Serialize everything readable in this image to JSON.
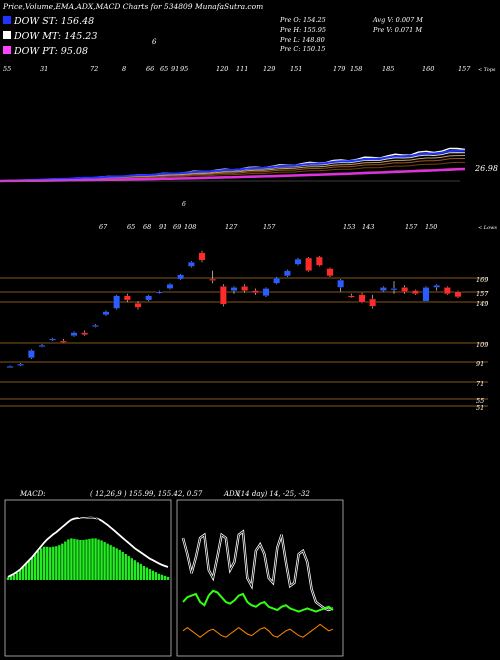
{
  "header": {
    "title": "Price,Volume,EMA,ADX,MACD Charts for 534809 MunafaSutra.com",
    "legend": [
      {
        "label": "DOW ST: 156.48",
        "color": "#2233ff"
      },
      {
        "label": "DOW MT: 145.23",
        "color": "#ffffff"
      },
      {
        "label": "DOW PT: 95.08",
        "color": "#ff44ff"
      }
    ],
    "ohlc": {
      "open": "Pre   O: 154.25",
      "high": "Pre   H: 155.95",
      "low": "Pre   L: 148.80",
      "close": "Pre   C: 150.15"
    },
    "volume": {
      "avg": "Avg V: 0.007 M",
      "prev": "Pre   V: 0.071 M"
    },
    "stray_top": "6"
  },
  "colors": {
    "up": "#2b5cff",
    "down": "#ff2b2b",
    "grid": "#b07020",
    "macd_fill": "#22ee22",
    "adx_pos": "#33ff11",
    "adx_neg": "#ff8800",
    "dow_pt": "#dd33dd"
  },
  "top_labels": [
    "55",
    "31",
    "72",
    "8",
    "66",
    "65",
    "91",
    "95",
    "120",
    "111",
    "129",
    "151",
    "179",
    "158",
    "185",
    "160",
    "157"
  ],
  "top_axis_note": "< Tops",
  "mid_labels": [
    "67",
    "65",
    "68",
    "91",
    "69",
    "108",
    "127",
    "157",
    "153",
    "143",
    "157",
    "150"
  ],
  "mid_axis_note": "< Lows",
  "mid_stray": "6",
  "dow_pt_value": "26.98",
  "chart_data": [
    {
      "type": "candlestick",
      "title": "",
      "levels": [
        169,
        157,
        149,
        109,
        91,
        71,
        55,
        51
      ],
      "candles": [
        {
          "o": 84.5,
          "h": 85.5,
          "l": 84,
          "c": 85
        },
        {
          "o": 86,
          "h": 88,
          "l": 85,
          "c": 87
        },
        {
          "o": 93,
          "h": 101,
          "l": 92,
          "c": 100
        },
        {
          "o": 104,
          "h": 106,
          "l": 103,
          "c": 105
        },
        {
          "o": 110,
          "h": 112,
          "l": 109,
          "c": 111
        },
        {
          "o": 109,
          "h": 111,
          "l": 107,
          "c": 108
        },
        {
          "o": 114,
          "h": 118,
          "l": 113,
          "c": 117
        },
        {
          "o": 117,
          "h": 119,
          "l": 114,
          "c": 115
        },
        {
          "o": 123,
          "h": 125,
          "l": 122,
          "c": 124
        },
        {
          "o": 134,
          "h": 138,
          "l": 133,
          "c": 137
        },
        {
          "o": 140,
          "h": 153,
          "l": 139,
          "c": 152
        },
        {
          "o": 152,
          "h": 154,
          "l": 146,
          "c": 148
        },
        {
          "o": 145,
          "h": 147,
          "l": 139,
          "c": 141
        },
        {
          "o": 148,
          "h": 153,
          "l": 147,
          "c": 152
        },
        {
          "o": 155,
          "h": 157,
          "l": 154,
          "c": 156
        },
        {
          "o": 159,
          "h": 164,
          "l": 158,
          "c": 163
        },
        {
          "o": 168,
          "h": 173,
          "l": 167,
          "c": 172
        },
        {
          "o": 180,
          "h": 185,
          "l": 179,
          "c": 184
        },
        {
          "o": 193,
          "h": 195,
          "l": 184,
          "c": 186
        },
        {
          "o": 168,
          "h": 176,
          "l": 164,
          "c": 167
        },
        {
          "o": 161,
          "h": 163,
          "l": 142,
          "c": 144
        },
        {
          "o": 157,
          "h": 161,
          "l": 154,
          "c": 160
        },
        {
          "o": 161,
          "h": 163,
          "l": 155,
          "c": 157
        },
        {
          "o": 157,
          "h": 159,
          "l": 153,
          "c": 155
        },
        {
          "o": 152,
          "h": 160,
          "l": 151,
          "c": 159
        },
        {
          "o": 164,
          "h": 170,
          "l": 163,
          "c": 169
        },
        {
          "o": 171,
          "h": 177,
          "l": 170,
          "c": 176
        },
        {
          "o": 182,
          "h": 188,
          "l": 181,
          "c": 187
        },
        {
          "o": 188,
          "h": 189,
          "l": 175,
          "c": 176
        },
        {
          "o": 189,
          "h": 190,
          "l": 180,
          "c": 181
        },
        {
          "o": 178,
          "h": 179,
          "l": 170,
          "c": 171
        },
        {
          "o": 160,
          "h": 168,
          "l": 156,
          "c": 167
        },
        {
          "o": 152,
          "h": 154,
          "l": 150,
          "c": 151
        },
        {
          "o": 153,
          "h": 155,
          "l": 145,
          "c": 146
        },
        {
          "o": 149,
          "h": 153,
          "l": 140,
          "c": 142
        },
        {
          "o": 157,
          "h": 161,
          "l": 156,
          "c": 160
        },
        {
          "o": 159,
          "h": 166,
          "l": 154,
          "c": 159
        },
        {
          "o": 160,
          "h": 162,
          "l": 154,
          "c": 156
        },
        {
          "o": 157,
          "h": 158,
          "l": 153,
          "c": 154
        },
        {
          "o": 147,
          "h": 161,
          "l": 147,
          "c": 160
        },
        {
          "o": 160,
          "h": 163,
          "l": 157,
          "c": 162
        },
        {
          "o": 160,
          "h": 161,
          "l": 153,
          "c": 154
        },
        {
          "o": 156,
          "h": 157,
          "l": 150,
          "c": 151
        }
      ]
    },
    {
      "type": "line",
      "title": "MACD:",
      "params": "( 12,26,9 ) 155.99, 155.42, 0.57",
      "hist": [
        0.5,
        0.8,
        1.0,
        1.4,
        1.9,
        2.6,
        3.2,
        3.8,
        4.3,
        4.9,
        5.6,
        6.1,
        6.4,
        6.4,
        6.3,
        6.4,
        6.5,
        6.7,
        7.0,
        7.4,
        7.8,
        8.0,
        7.9,
        7.8,
        7.7,
        7.7,
        7.8,
        7.9,
        8.0,
        8.0,
        7.8,
        7.6,
        7.3,
        7.0,
        6.7,
        6.4,
        6.1,
        5.8,
        5.4,
        5.0,
        4.6,
        4.2,
        3.8,
        3.4,
        3.1,
        2.7,
        2.4,
        2.1,
        1.8,
        1.5,
        1.2,
        1.0,
        0.8,
        0.6
      ],
      "macd": [
        1.0,
        1.5,
        1.9,
        2.4,
        3.0,
        3.8,
        4.6,
        5.4,
        6.2,
        7.0,
        7.9,
        8.6,
        9.2,
        9.5,
        9.7,
        10.0,
        10.5,
        11.1,
        11.7,
        12.3,
        12.8,
        12.9,
        12.6,
        12.2,
        11.9,
        11.8,
        11.9,
        12.0,
        12.1,
        12.0,
        11.5,
        10.9,
        10.3,
        9.7,
        9.1,
        8.5,
        8.0,
        7.5,
        7.0,
        6.4,
        5.9,
        5.4,
        4.9,
        4.5,
        4.1,
        3.7,
        3.3,
        3.0,
        2.7,
        2.4,
        2.1,
        1.9,
        1.7,
        1.5
      ],
      "signal": [
        0.6,
        0.9,
        1.2,
        1.6,
        2.0,
        2.6,
        3.2,
        3.8,
        4.4,
        5.1,
        5.8,
        6.5,
        7.2,
        7.8,
        8.3,
        8.8,
        9.2,
        9.7,
        10.2,
        10.7,
        11.2,
        11.6,
        11.8,
        11.9,
        11.9,
        11.9,
        11.9,
        12.0,
        12.0,
        11.9,
        11.7,
        11.4,
        11.0,
        10.6,
        10.1,
        9.6,
        9.1,
        8.6,
        8.1,
        7.6,
        7.1,
        6.6,
        6.1,
        5.7,
        5.3,
        4.9,
        4.5,
        4.1,
        3.8,
        3.5,
        3.2,
        2.9,
        2.7,
        2.5
      ]
    },
    {
      "type": "line",
      "title": "ADX",
      "params": "(14 day) 14, -25, -32",
      "adx": [
        70,
        60,
        48,
        58,
        70,
        72,
        50,
        45,
        58,
        72,
        70,
        50,
        55,
        72,
        74,
        45,
        40,
        62,
        66,
        60,
        45,
        42,
        64,
        72,
        55,
        40,
        42,
        60,
        62,
        55,
        38,
        30,
        28,
        26,
        25,
        26
      ],
      "dip": [
        30,
        33,
        34,
        35,
        30,
        28,
        34,
        37,
        36,
        33,
        30,
        29,
        31,
        34,
        35,
        30,
        28,
        27,
        29,
        30,
        27,
        26,
        25,
        27,
        28,
        26,
        25,
        24,
        25,
        26,
        25,
        24,
        25,
        26,
        27,
        25
      ],
      "dim": [
        12,
        14,
        12,
        10,
        8,
        10,
        12,
        13,
        11,
        9,
        8,
        10,
        12,
        14,
        12,
        10,
        9,
        11,
        13,
        14,
        12,
        9,
        8,
        10,
        12,
        13,
        11,
        9,
        8,
        10,
        12,
        14,
        16,
        14,
        12,
        13
      ]
    }
  ]
}
